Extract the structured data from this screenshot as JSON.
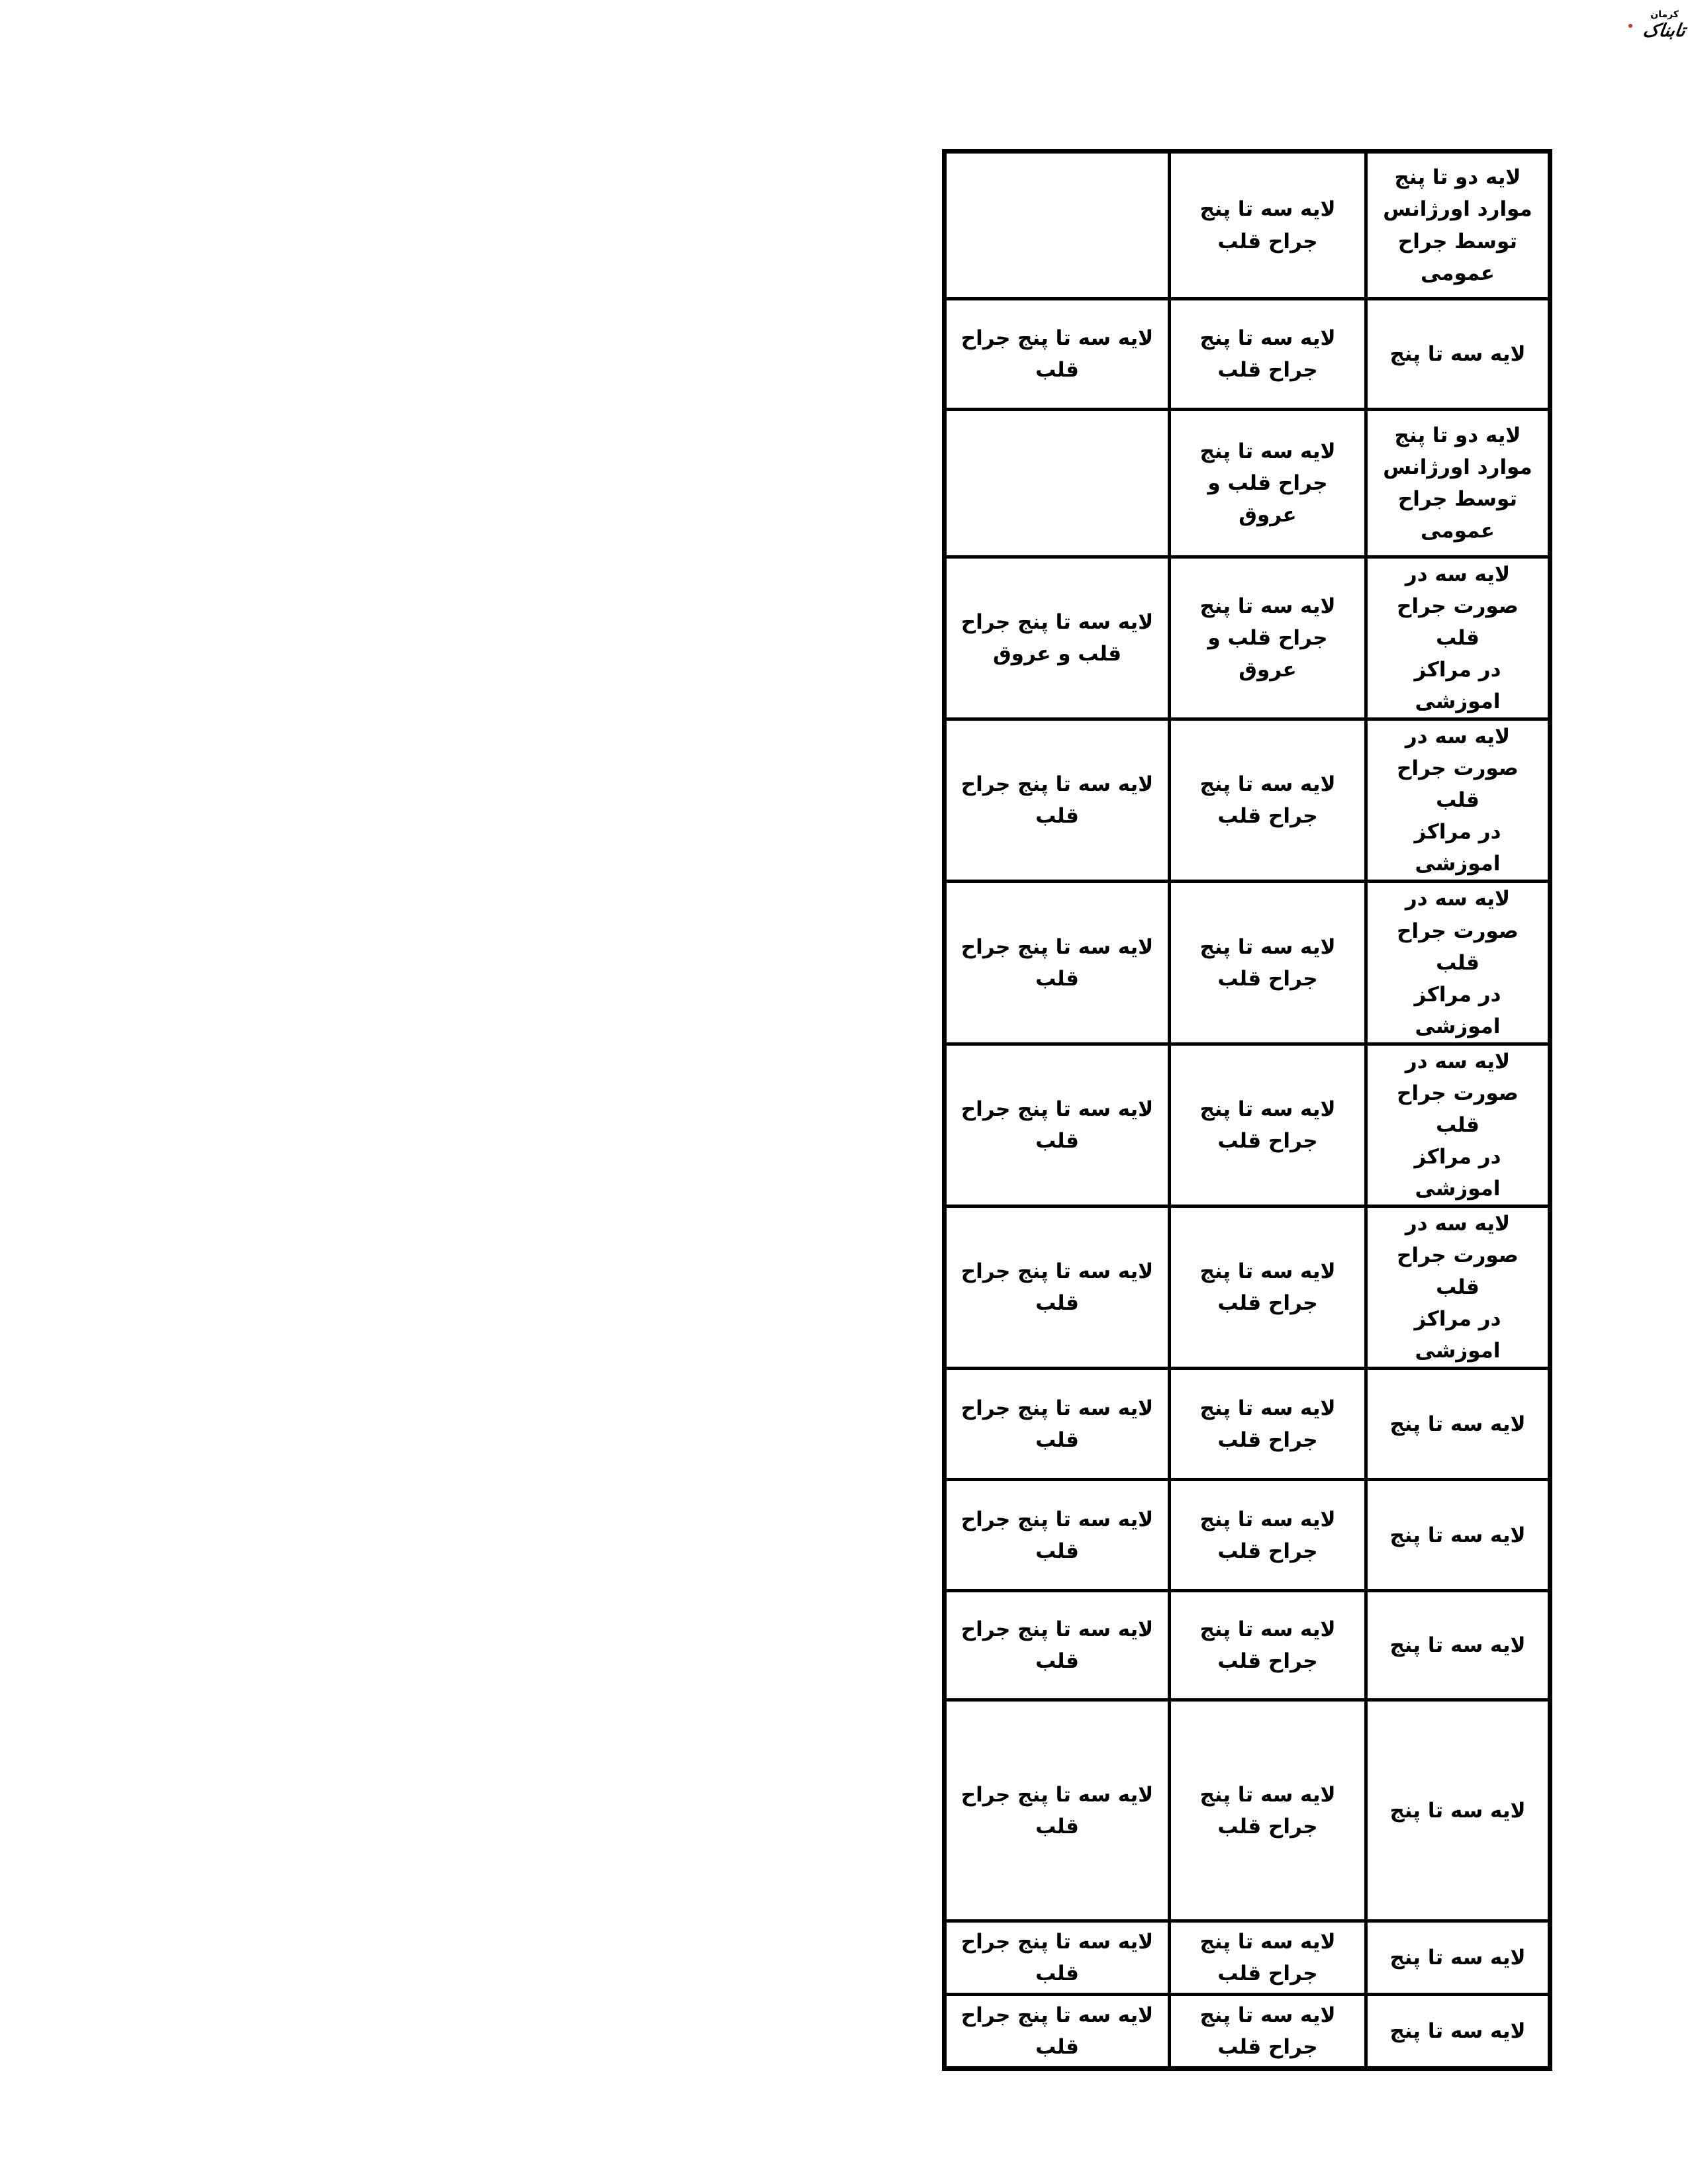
{
  "logo": {
    "main_text": "تابناک",
    "sub_text": "کرمان"
  },
  "table": {
    "rows": [
      {
        "left": "",
        "middle": "لایه سه تا پنج\nجراح قلب",
        "right": "لایه دو تا پنج\nموارد اورژانس\nتوسط جراح\nعمومی"
      },
      {
        "left": "لایه سه تا پنج جراح\nقلب",
        "middle": "لایه سه تا پنج\nجراح قلب",
        "right": "لایه سه تا پنج"
      },
      {
        "left": "",
        "middle": "لایه سه تا پنج\nجراح قلب و عروق",
        "right": "لایه دو تا پنج\nموارد اورژانس\nتوسط جراح\nعمومی"
      },
      {
        "left": "لایه سه تا پنج جراح\nقلب و عروق",
        "middle": "لایه سه تا پنج\nجراح قلب و عروق",
        "right": "لایه سه در\nصورت جراح قلب\nدر مراکز اموزشی"
      },
      {
        "left": "لایه سه تا پنج جراح\nقلب",
        "middle": "لایه سه تا پنج\nجراح قلب",
        "right": "لایه سه در\nصورت جراح قلب\nدر مراکز اموزشی"
      },
      {
        "left": "لایه سه تا پنج جراح\nقلب",
        "middle": "لایه سه تا پنج\nجراح قلب",
        "right": "لایه سه در\nصورت جراح قلب\nدر مراکز اموزشی"
      },
      {
        "left": "لایه سه تا پنج جراح\nقلب",
        "middle": "لایه سه تا پنج\nجراح قلب",
        "right": "لایه سه در\nصورت جراح قلب\nدر مراکز اموزشی"
      },
      {
        "left": "لایه سه تا پنج جراح\nقلب",
        "middle": "لایه سه تا پنج\nجراح قلب",
        "right": "لایه سه در\nصورت جراح قلب\nدر مراکز اموزشی"
      },
      {
        "left": "لایه سه تا پنج جراح\nقلب",
        "middle": "لایه سه تا پنج\nجراح قلب",
        "right": "لایه سه تا پنج"
      },
      {
        "left": "لایه سه تا پنج جراح\nقلب",
        "middle": "لایه سه تا پنج\nجراح قلب",
        "right": "لایه سه تا پنج"
      },
      {
        "left": "لایه سه تا پنج جراح\nقلب",
        "middle": "لایه سه تا پنج\nجراح قلب",
        "right": "لایه سه تا پنج"
      },
      {
        "left": "لایه سه تا پنج جراح\nقلب",
        "middle": "لایه سه تا پنج\nجراح قلب",
        "right": "لایه سه تا پنج"
      },
      {
        "left": "لایه سه تا پنج جراح\nقلب",
        "middle": "لایه سه تا پنج\nجراح قلب",
        "right": "لایه سه تا پنج"
      },
      {
        "left": "لایه سه تا پنج جراح\nقلب",
        "middle": "لایه سه تا پنج\nجراح قلب",
        "right": "لایه سه تا پنج"
      }
    ]
  }
}
